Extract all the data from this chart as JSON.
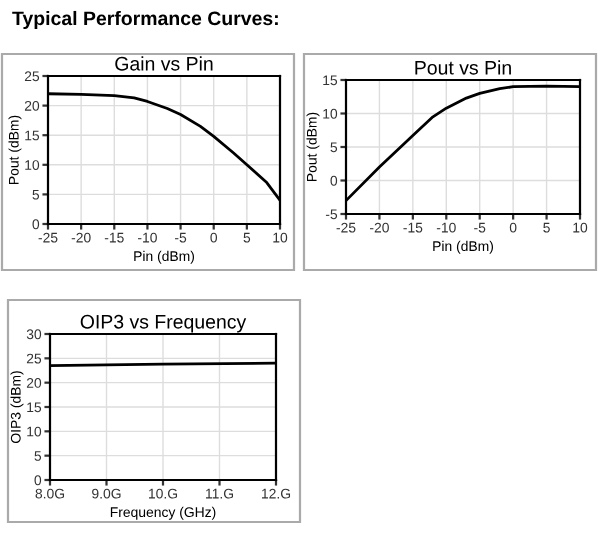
{
  "chart_data": [
    {
      "type": "line",
      "title": "Gain vs Pin",
      "xlabel": "Pin (dBm)",
      "ylabel": "Pout (dBm)",
      "annotations": [
        "Typical Performance Curves:"
      ],
      "x": [
        -25,
        -20,
        -15,
        -12,
        -10,
        -7,
        -5,
        -2,
        0,
        3,
        5,
        8,
        10
      ],
      "series": [
        {
          "color": "#000000",
          "values": [
            22,
            21.9,
            21.7,
            21.3,
            20.7,
            19.5,
            18.5,
            16.5,
            14.8,
            12,
            10,
            7,
            4
          ]
        }
      ],
      "xlim": [
        -25,
        10
      ],
      "xticks": [
        -25,
        -20,
        -15,
        -10,
        -5,
        0,
        5,
        10
      ],
      "ylim": [
        0,
        25
      ],
      "yticks": [
        0,
        5,
        10,
        15,
        20,
        25
      ],
      "grid": true
    },
    {
      "type": "line",
      "title": "Pout vs Pin",
      "xlabel": "Pin (dBm)",
      "ylabel": "Pout (dBm)",
      "x": [
        -25,
        -20,
        -15,
        -12,
        -10,
        -7,
        -5,
        -2,
        0,
        5,
        10
      ],
      "series": [
        {
          "color": "#000000",
          "values": [
            -3,
            2,
            6.7,
            9.5,
            10.8,
            12.3,
            13,
            13.7,
            14,
            14.1,
            14
          ]
        }
      ],
      "xlim": [
        -25,
        10
      ],
      "xticks": [
        -25,
        -20,
        -15,
        -10,
        -5,
        0,
        5,
        10
      ],
      "ylim": [
        -5,
        15
      ],
      "yticks": [
        -5,
        0,
        5,
        10,
        15
      ],
      "grid": true
    },
    {
      "type": "line",
      "title": "OIP3 vs Frequency",
      "xlabel": "Frequency (GHz)",
      "ylabel": "OIP3 (dBm)",
      "x": [
        8,
        10,
        12
      ],
      "series": [
        {
          "color": "#000000",
          "values": [
            23.5,
            23.8,
            24
          ]
        }
      ],
      "xlim": [
        8,
        12
      ],
      "xticks": [
        {
          "value": 8,
          "label": "8.0G"
        },
        {
          "value": 9,
          "label": "9.0G"
        },
        {
          "value": 10,
          "label": "10.G"
        },
        {
          "value": 11,
          "label": "11.G"
        },
        {
          "value": 12,
          "label": "12.G"
        }
      ],
      "ylim": [
        0,
        30
      ],
      "yticks": [
        0,
        5,
        10,
        15,
        20,
        25,
        30
      ],
      "grid": true
    }
  ]
}
